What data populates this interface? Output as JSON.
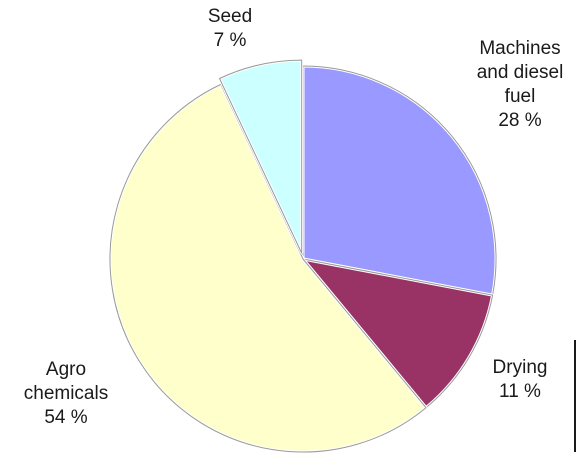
{
  "chart_data": {
    "type": "pie",
    "title": "",
    "slices": [
      {
        "label": [
          "Machines",
          "and diesel",
          "fuel"
        ],
        "value_text": "28 %",
        "value": 28,
        "color": "#9999ff"
      },
      {
        "label": [
          "Drying"
        ],
        "value_text": "11 %",
        "value": 11,
        "color": "#993366"
      },
      {
        "label": [
          "Agro",
          "chemicals"
        ],
        "value_text": "54 %",
        "value": 54,
        "color": "#ffffcc"
      },
      {
        "label": [
          "Seed"
        ],
        "value_text": "7 %",
        "value": 7,
        "color": "#ccffff"
      }
    ]
  }
}
